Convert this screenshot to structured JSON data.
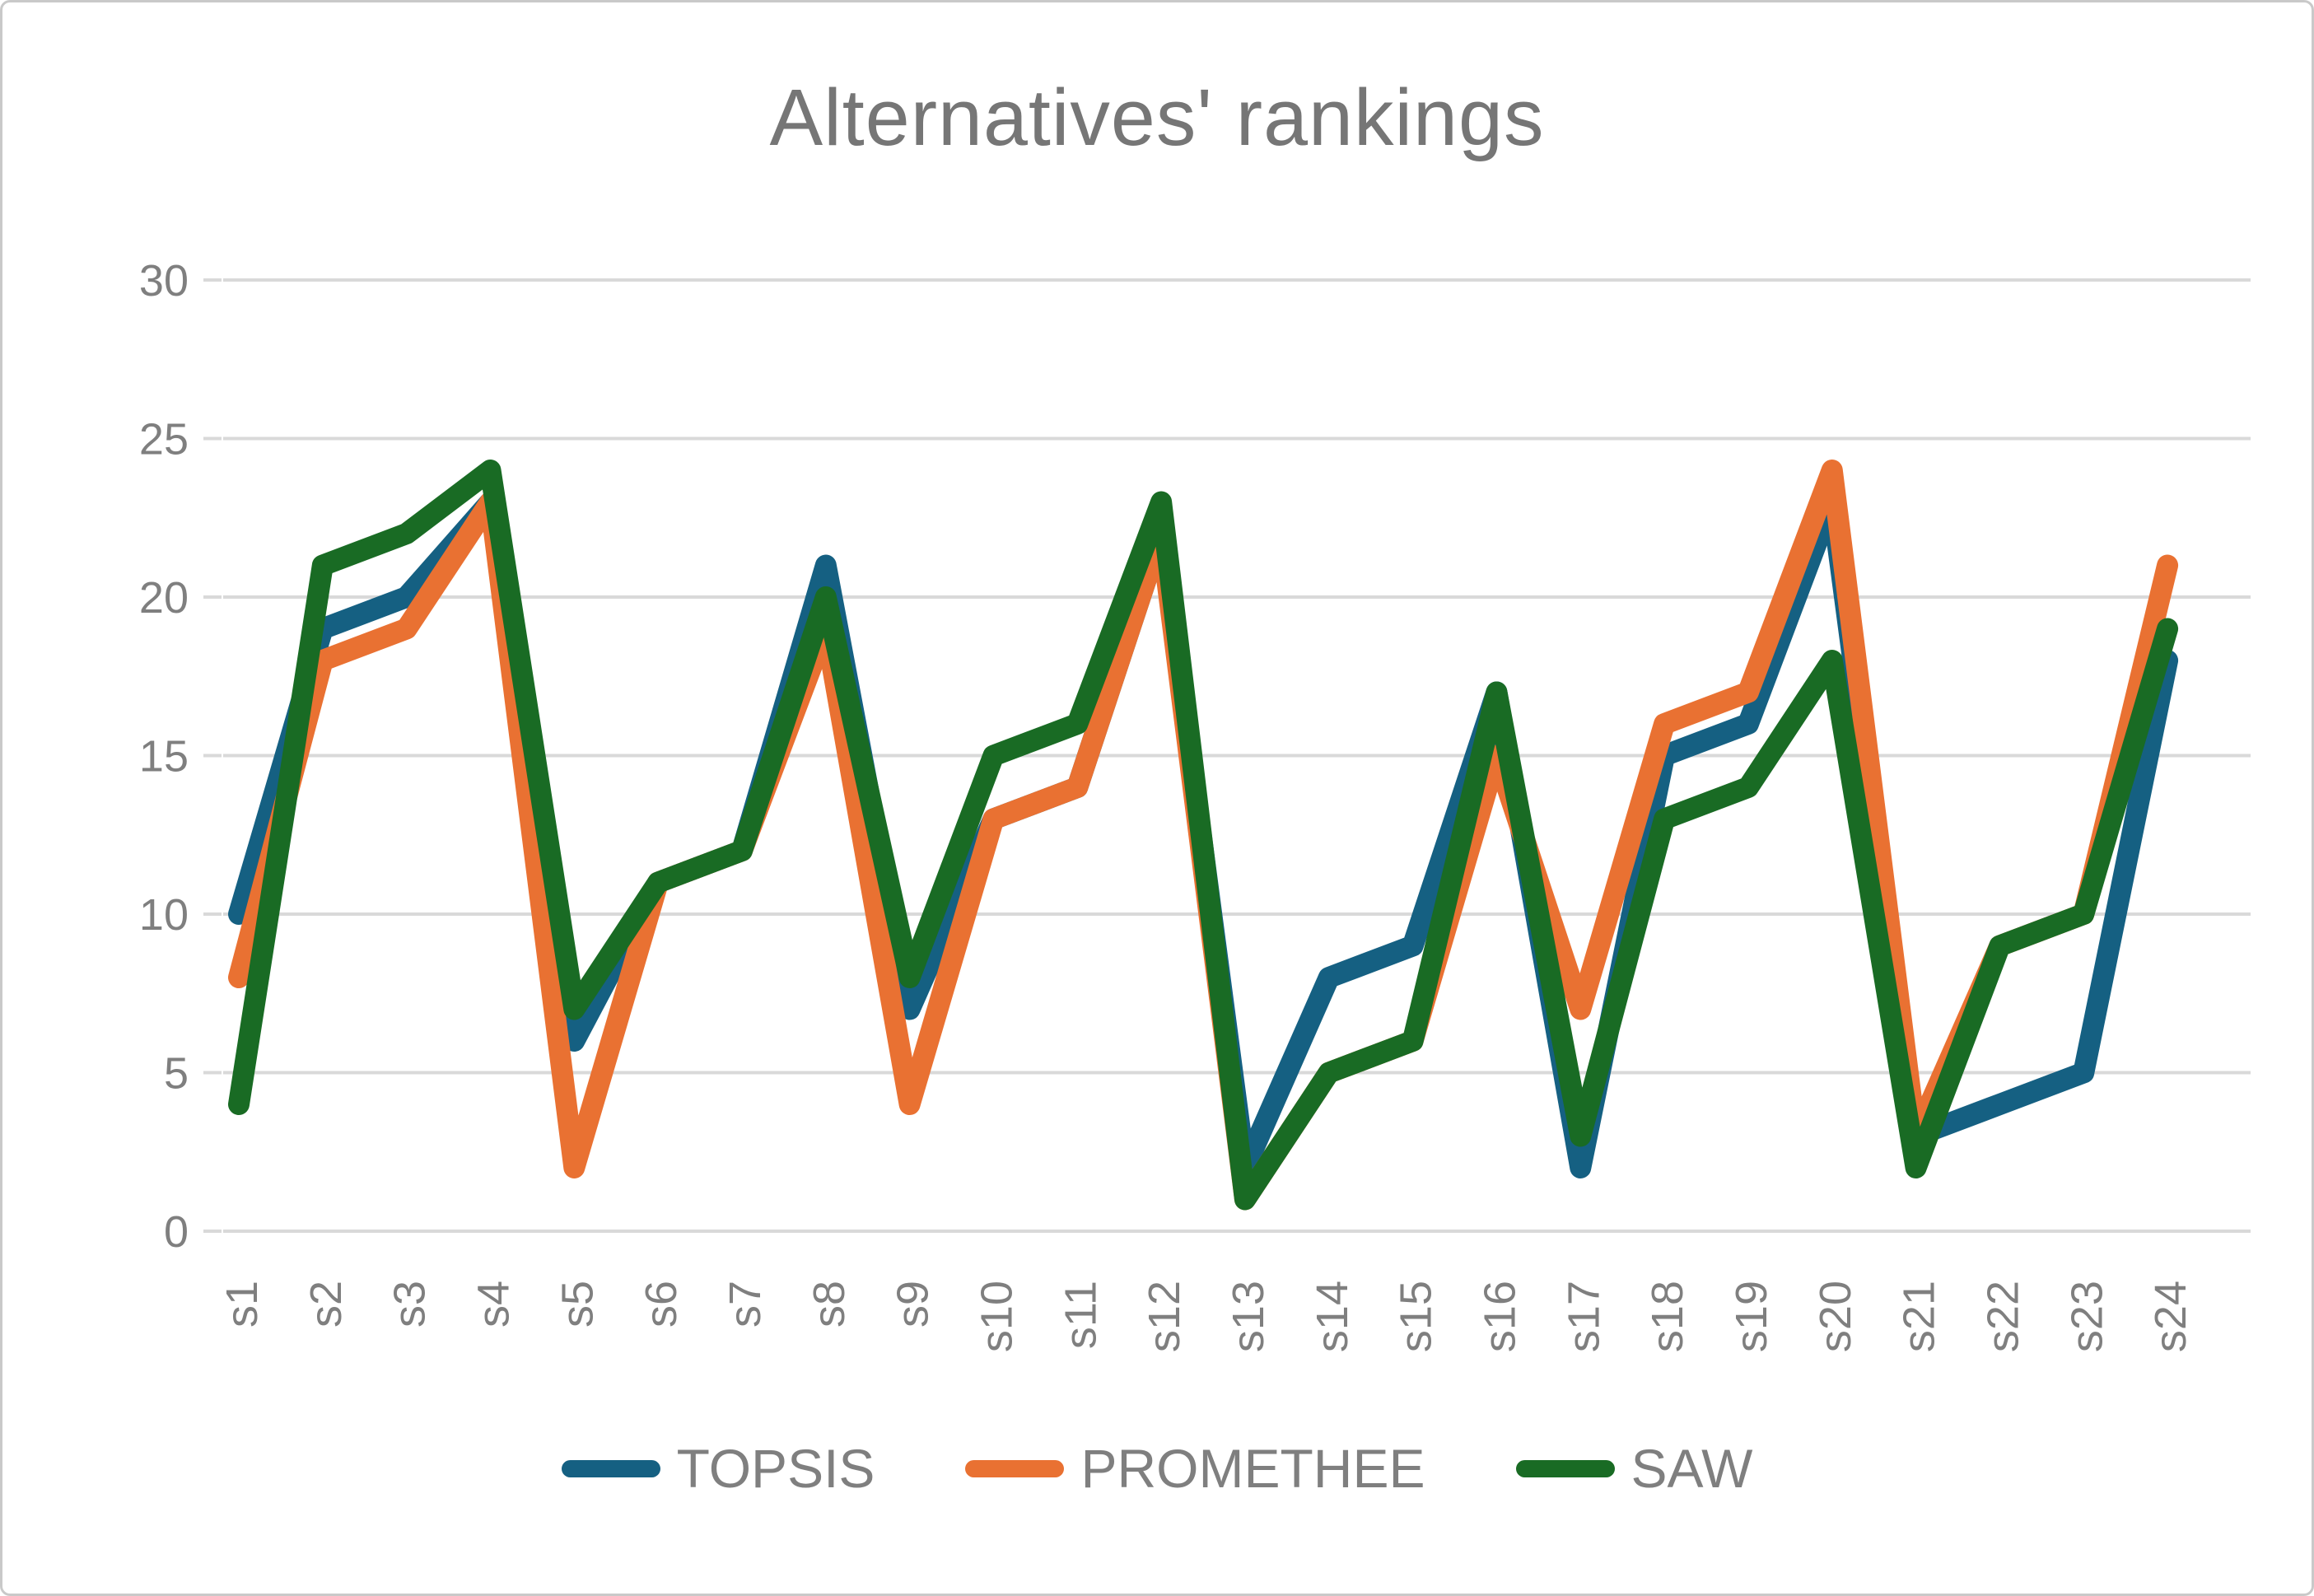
{
  "title": "Alternatives' rankings",
  "chart_data": {
    "type": "line",
    "title": "Alternatives' rankings",
    "categories": [
      "s1",
      "s2",
      "s3",
      "s4",
      "s5",
      "s6",
      "s7",
      "s8",
      "s9",
      "s10",
      "s11",
      "s12",
      "s13",
      "s14",
      "s15",
      "s16",
      "s17",
      "s18",
      "s19",
      "s20",
      "s21",
      "s22",
      "s23",
      "s24"
    ],
    "series": [
      {
        "name": "TOPSIS",
        "color": "#156082",
        "values": [
          10,
          19,
          20,
          23,
          6,
          11,
          12,
          21,
          7,
          13,
          14,
          22,
          2,
          8,
          9,
          17,
          2,
          15,
          16,
          23,
          3,
          4,
          5,
          18
        ]
      },
      {
        "name": "PROMETHEE",
        "color": "#E97132",
        "values": [
          8,
          18,
          19,
          23,
          2,
          11,
          12,
          19,
          4,
          13,
          14,
          22,
          1,
          5,
          6,
          15,
          7,
          16,
          17,
          24,
          3,
          9,
          10,
          21
        ]
      },
      {
        "name": "SAW",
        "color": "#196B24",
        "values": [
          4,
          21,
          22,
          24,
          7,
          11,
          12,
          20,
          8,
          15,
          16,
          23,
          1,
          5,
          6,
          17,
          3,
          13,
          14,
          18,
          2,
          9,
          10,
          19
        ]
      }
    ],
    "ylim": [
      0,
      30
    ],
    "yticks": [
      0,
      5,
      10,
      15,
      20,
      25,
      30
    ],
    "grid": true,
    "legend_position": "bottom",
    "x_label_rotation": -90
  },
  "styles": {
    "grid_color": "#D9D9D9",
    "tick_color": "#D9D9D9",
    "label_color": "#7F7F7F",
    "title_color": "#767676",
    "background": "#FFFFFF",
    "border_color": "#C9C9C9"
  }
}
